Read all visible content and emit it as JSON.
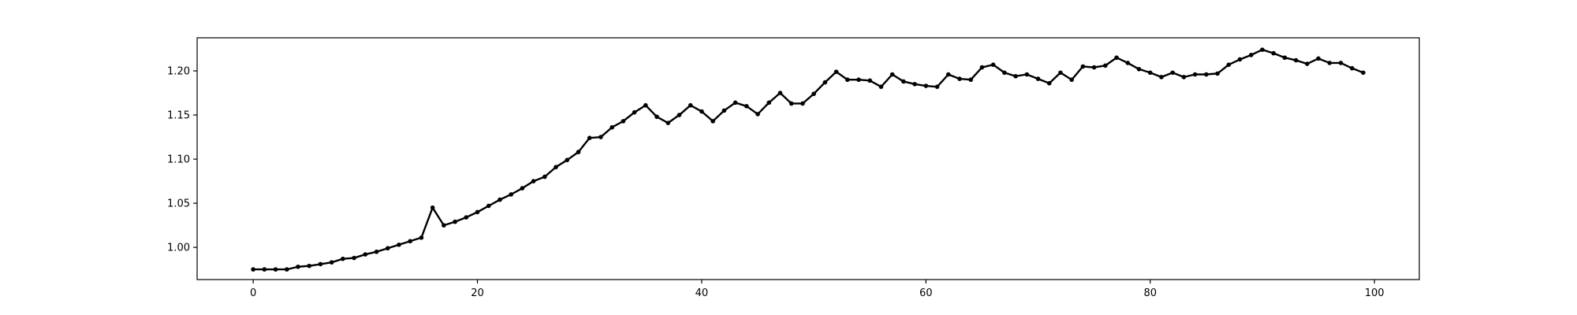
{
  "chart_data": {
    "type": "line",
    "title": "",
    "xlabel": "",
    "ylabel": "",
    "xlim": [
      -5,
      104
    ],
    "ylim": [
      0.9635,
      1.2375
    ],
    "grid": false,
    "legend": "none",
    "line_color": "#000000",
    "x_ticks": [
      {
        "value": 0,
        "label": "0"
      },
      {
        "value": 20,
        "label": "20"
      },
      {
        "value": 40,
        "label": "40"
      },
      {
        "value": 60,
        "label": "60"
      },
      {
        "value": 80,
        "label": "80"
      },
      {
        "value": 100,
        "label": "100"
      }
    ],
    "y_ticks": [
      {
        "value": 1.0,
        "label": "1.00"
      },
      {
        "value": 1.05,
        "label": "1.05"
      },
      {
        "value": 1.1,
        "label": "1.10"
      },
      {
        "value": 1.15,
        "label": "1.15"
      },
      {
        "value": 1.2,
        "label": "1.20"
      }
    ],
    "x": [
      0,
      1,
      2,
      3,
      4,
      5,
      6,
      7,
      8,
      9,
      10,
      11,
      12,
      13,
      14,
      15,
      16,
      17,
      18,
      19,
      20,
      21,
      22,
      23,
      24,
      25,
      26,
      27,
      28,
      29,
      30,
      31,
      32,
      33,
      34,
      35,
      36,
      37,
      38,
      39,
      40,
      41,
      42,
      43,
      44,
      45,
      46,
      47,
      48,
      49,
      50,
      51,
      52,
      53,
      54,
      55,
      56,
      57,
      58,
      59,
      60,
      61,
      62,
      63,
      64,
      65,
      66,
      67,
      68,
      69,
      70,
      71,
      72,
      73,
      74,
      75,
      76,
      77,
      78,
      79,
      80,
      81,
      82,
      83,
      84,
      85,
      86,
      87,
      88,
      89,
      90,
      91,
      92,
      93,
      94,
      95,
      96,
      97,
      98,
      99
    ],
    "y": [
      0.975,
      0.975,
      0.975,
      0.975,
      0.978,
      0.979,
      0.981,
      0.983,
      0.987,
      0.988,
      0.992,
      0.995,
      0.999,
      1.003,
      1.007,
      1.011,
      1.045,
      1.025,
      1.029,
      1.034,
      1.04,
      1.047,
      1.054,
      1.06,
      1.067,
      1.075,
      1.08,
      1.091,
      1.099,
      1.108,
      1.124,
      1.125,
      1.136,
      1.143,
      1.153,
      1.161,
      1.148,
      1.141,
      1.15,
      1.161,
      1.154,
      1.143,
      1.155,
      1.164,
      1.16,
      1.151,
      1.164,
      1.175,
      1.163,
      1.163,
      1.174,
      1.187,
      1.199,
      1.19,
      1.19,
      1.189,
      1.182,
      1.196,
      1.188,
      1.185,
      1.183,
      1.182,
      1.196,
      1.191,
      1.19,
      1.204,
      1.207,
      1.198,
      1.194,
      1.196,
      1.191,
      1.186,
      1.198,
      1.19,
      1.205,
      1.204,
      1.206,
      1.215,
      1.209,
      1.202,
      1.198,
      1.193,
      1.198,
      1.193,
      1.196,
      1.196,
      1.197,
      1.207,
      1.213,
      1.218,
      1.224,
      1.22,
      1.215,
      1.212,
      1.208,
      1.214,
      1.209,
      1.209,
      1.203,
      1.198
    ]
  }
}
